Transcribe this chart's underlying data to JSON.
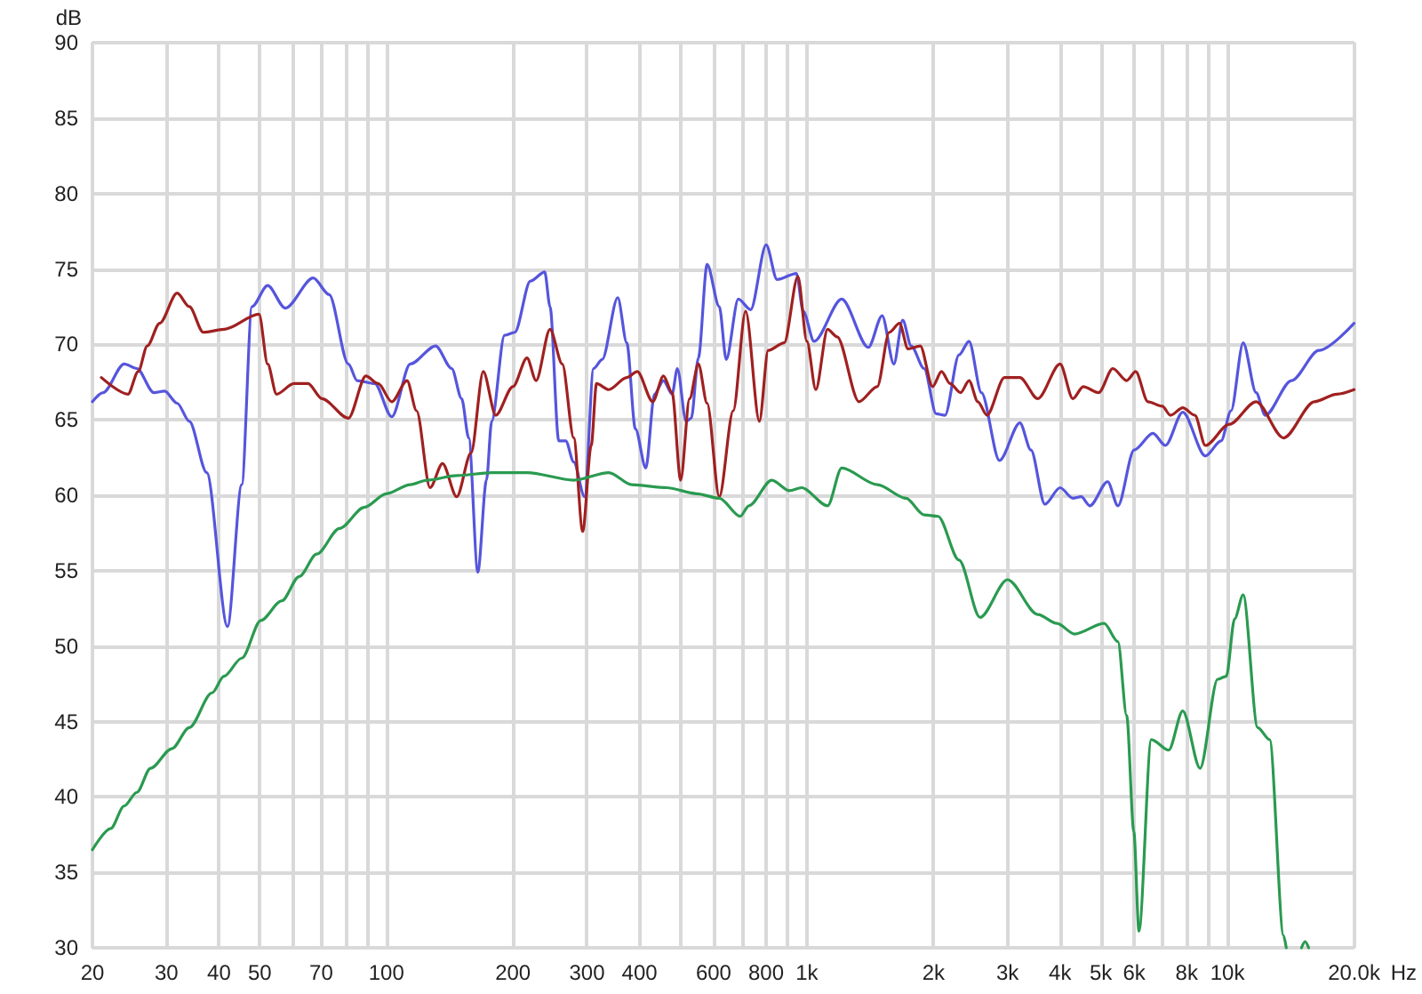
{
  "chart_data": {
    "type": "line",
    "xlabel": "Hz",
    "ylabel": "dB",
    "log": "x",
    "grid": true,
    "marker": "none",
    "line_style": "solid",
    "xlim": [
      20,
      20000
    ],
    "xticks": [
      20,
      30,
      40,
      50,
      {
        "value": 60,
        "label": null
      },
      70,
      {
        "value": 80,
        "label": null
      },
      {
        "value": 90,
        "label": null
      },
      100,
      200,
      300,
      400,
      {
        "value": 500,
        "label": null
      },
      600,
      {
        "value": 700,
        "label": null
      },
      800,
      {
        "value": 900,
        "label": null
      },
      {
        "value": 1000,
        "label": "1k"
      },
      {
        "value": 2000,
        "label": "2k"
      },
      {
        "value": 3000,
        "label": "3k"
      },
      {
        "value": 4000,
        "label": "4k"
      },
      {
        "value": 5000,
        "label": "5k"
      },
      {
        "value": 6000,
        "label": "6k"
      },
      {
        "value": 7000,
        "label": null
      },
      {
        "value": 8000,
        "label": "8k"
      },
      {
        "value": 9000,
        "label": null
      },
      {
        "value": 10000,
        "label": "10k"
      },
      {
        "value": 20000,
        "label": "20.0k"
      }
    ],
    "ylim": [
      30,
      90
    ],
    "yticks": [
      30,
      35,
      40,
      45,
      50,
      55,
      60,
      65,
      70,
      75,
      80,
      85,
      90
    ],
    "series": [
      {
        "color": "#5555dd",
        "x": [
          20,
          21.2,
          23.8,
          25.5,
          28,
          29.7,
          31.8,
          34,
          37.4,
          41.9,
          45.3,
          47.9,
          52.2,
          57.5,
          67,
          73.1,
          81.2,
          85.2,
          93.8,
          103,
          114,
          131,
          143,
          151,
          157,
          165,
          173,
          178,
          191,
          202,
          220,
          238,
          245,
          257,
          267,
          279,
          296,
          311,
          326,
          355,
          373,
          391,
          414,
          434,
          456,
          478,
          492,
          516,
          531,
          552,
          579,
          619,
          643,
          687,
          735,
          800,
          849,
          944,
          980,
          1040,
          1210,
          1400,
          1510,
          1610,
          1690,
          1770,
          1900,
          2030,
          2130,
          2300,
          2430,
          2600,
          2870,
          3210,
          3410,
          3680,
          4000,
          4290,
          4490,
          4710,
          5190,
          5490,
          6000,
          6650,
          7120,
          7830,
          8860,
          9660,
          10200,
          10900,
          11700,
          12300,
          14200,
          16500,
          20000
        ],
        "values": [
          66.2,
          66.8,
          68.7,
          68.4,
          66.8,
          66.9,
          66.1,
          64.9,
          61.5,
          51.3,
          60.7,
          72.5,
          73.9,
          72.4,
          74.4,
          73.3,
          68.7,
          67.6,
          67.4,
          65.2,
          68.7,
          69.9,
          68.4,
          66.4,
          63.8,
          54.9,
          61.0,
          64.9,
          70.6,
          70.8,
          74.2,
          74.8,
          72.5,
          63.6,
          63.6,
          62.2,
          59.9,
          68.4,
          69.0,
          73.1,
          70.1,
          64.4,
          61.8,
          66.7,
          67.6,
          66.7,
          68.4,
          64.9,
          65.1,
          69.1,
          75.3,
          72.5,
          69.0,
          73.0,
          72.3,
          76.6,
          74.3,
          74.7,
          72.2,
          70.2,
          73.0,
          69.8,
          71.9,
          68.7,
          71.6,
          69.9,
          68.4,
          65.4,
          65.3,
          69.3,
          70.2,
          66.8,
          62.3,
          64.8,
          63.0,
          59.4,
          60.5,
          59.8,
          59.9,
          59.3,
          60.9,
          59.3,
          63.0,
          64.1,
          63.3,
          65.5,
          62.6,
          63.6,
          65.6,
          70.1,
          66.8,
          65.3,
          67.6,
          69.6,
          71.4
        ]
      },
      {
        "color": "#a02020",
        "x": [
          21,
          24.3,
          25.7,
          27,
          28.9,
          31.8,
          34,
          36.7,
          41.1,
          49.8,
          52.2,
          54.8,
          60.3,
          65.1,
          70.3,
          81.2,
          89.4,
          95.6,
          103,
          112,
          118,
          127,
          136,
          147,
          159,
          170,
          182,
          200,
          216,
          227,
          245,
          262,
          279,
          293,
          307,
          316,
          338,
          373,
          395,
          430,
          456,
          478,
          501,
          526,
          552,
          579,
          619,
          668,
          715,
          771,
          809,
          883,
          952,
          1000,
          1050,
          1120,
          1180,
          1330,
          1470,
          1570,
          1660,
          1740,
          1860,
          1990,
          2090,
          2190,
          2320,
          2430,
          2550,
          2680,
          2950,
          3210,
          3540,
          4000,
          4290,
          4540,
          4940,
          5340,
          5760,
          6050,
          6470,
          7000,
          7320,
          7830,
          8370,
          8860,
          10100,
          11700,
          13600,
          16100,
          18200,
          20000
        ],
        "values": [
          67.8,
          66.7,
          68.2,
          69.9,
          71.4,
          73.4,
          72.5,
          70.8,
          71.0,
          72.0,
          68.7,
          66.7,
          67.4,
          67.4,
          66.4,
          65.1,
          67.9,
          67.4,
          66.2,
          67.6,
          65.6,
          60.5,
          62.1,
          59.9,
          62.8,
          68.2,
          65.3,
          67.2,
          69.1,
          67.6,
          71.0,
          68.7,
          63.8,
          57.6,
          63.3,
          67.4,
          67.0,
          67.8,
          68.2,
          66.2,
          67.9,
          66.8,
          61.0,
          66.4,
          68.7,
          66.1,
          59.9,
          65.6,
          72.2,
          64.9,
          69.6,
          70.1,
          74.5,
          70.2,
          67.0,
          71.0,
          70.5,
          66.2,
          67.2,
          70.8,
          71.4,
          69.7,
          69.9,
          67.2,
          68.2,
          67.4,
          66.8,
          67.6,
          66.2,
          65.3,
          67.8,
          67.8,
          66.4,
          68.7,
          66.4,
          67.2,
          66.8,
          68.4,
          67.6,
          68.2,
          66.2,
          65.9,
          65.3,
          65.8,
          65.3,
          63.3,
          64.7,
          66.2,
          63.8,
          66.2,
          66.7,
          67.0
        ]
      },
      {
        "color": "#2a9a50",
        "x": [
          20,
          22.1,
          23.8,
          25.5,
          27.5,
          30.9,
          34,
          38.5,
          41.1,
          45.3,
          50.3,
          56.4,
          62,
          68.3,
          77.4,
          88.6,
          100,
          114,
          125,
          147,
          178,
          216,
          279,
          338,
          383,
          464,
          547,
          619,
          694,
          728,
          825,
          909,
          971,
          1120,
          1210,
          1470,
          1720,
          1900,
          2050,
          2300,
          2580,
          3000,
          3540,
          3930,
          4330,
          5090,
          5490,
          5760,
          5990,
          6160,
          6590,
          7250,
          7830,
          8610,
          9480,
          9940,
          10400,
          10900,
          11800,
          12600,
          13600,
          13800
        ],
        "values": [
          36.5,
          37.9,
          39.4,
          40.3,
          41.9,
          43.2,
          44.6,
          46.9,
          48.0,
          49.2,
          51.7,
          53.0,
          54.6,
          56.1,
          57.8,
          59.2,
          60.1,
          60.7,
          61.0,
          61.3,
          61.5,
          61.5,
          61.0,
          61.5,
          60.7,
          60.5,
          60.1,
          59.8,
          58.6,
          59.3,
          61.0,
          60.3,
          60.5,
          59.3,
          61.8,
          60.7,
          59.8,
          58.7,
          58.6,
          55.7,
          51.9,
          54.4,
          52.1,
          51.5,
          50.8,
          51.5,
          50.3,
          45.4,
          37.7,
          31.1,
          43.8,
          43.1,
          45.7,
          41.9,
          47.8,
          48.0,
          51.8,
          53.4,
          44.6,
          43.8,
          30.8,
          30
        ]
      },
      {
        "color": "#2a9a50",
        "x": [
          15000,
          15300,
          15600
        ],
        "values": [
          30,
          30.4,
          30
        ]
      }
    ]
  }
}
